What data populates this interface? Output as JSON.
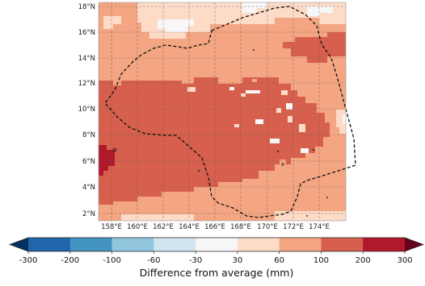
{
  "map": {
    "lat_labels": [
      "18°N",
      "16°N",
      "14°N",
      "12°N",
      "10°N",
      "8°N",
      "6°N",
      "4°N",
      "2°N"
    ],
    "lon_labels": [
      "158°E",
      "160°E",
      "162°E",
      "164°E",
      "166°E",
      "168°E",
      "170°E",
      "172°E",
      "174°E"
    ],
    "extent": {
      "lon": [
        157,
        176
      ],
      "lat": [
        1.5,
        18.2
      ]
    },
    "grid": "dashed"
  },
  "colorbar": {
    "title": "Difference from average (mm)",
    "tick_labels": [
      "-300",
      "-200",
      "-100",
      "-60",
      "-30",
      "30",
      "60",
      "100",
      "200",
      "300"
    ],
    "colors": [
      "#2166ac",
      "#4393c3",
      "#92c5de",
      "#d1e5f0",
      "#f7f7f7",
      "#fddbc7",
      "#f4a582",
      "#d6604d",
      "#b2182b"
    ],
    "under_color": "#053061",
    "over_color": "#67001f"
  }
}
